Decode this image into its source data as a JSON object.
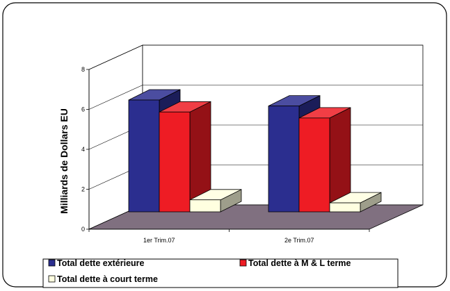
{
  "chart_data": {
    "type": "bar",
    "categories": [
      "1er Trim.07",
      "2e Trim.07"
    ],
    "series": [
      {
        "name": "Total dette extérieure",
        "values": [
          5.6,
          5.3
        ],
        "color": "#2B2E8F"
      },
      {
        "name": "Total dette à M & L terme",
        "values": [
          5.0,
          4.7
        ],
        "color": "#EE1C24"
      },
      {
        "name": "Total dette à court  terme",
        "values": [
          0.6,
          0.45
        ],
        "color": "#FFFFE0"
      }
    ],
    "title": "",
    "xlabel": "",
    "ylabel": "Milliards de Dollars EU",
    "ylim": [
      0,
      8
    ],
    "yticks": [
      "0",
      "2",
      "4",
      "6",
      "8"
    ],
    "grid": true,
    "legend_position": "bottom",
    "floor_color": "#807080"
  }
}
